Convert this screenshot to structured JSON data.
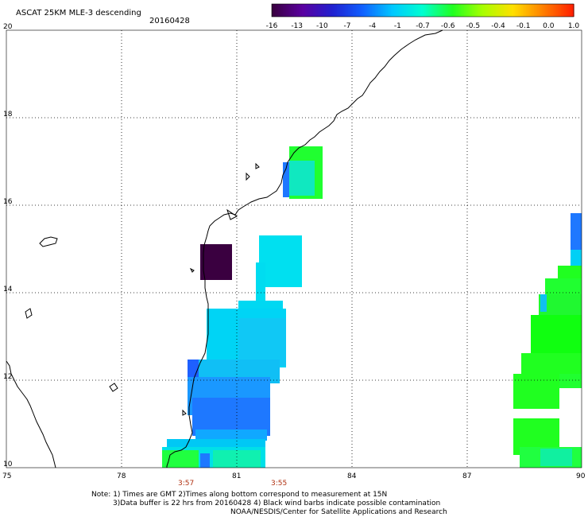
{
  "header": {
    "title": "ASCAT 25KM MLE-3 descending",
    "date": "20160428"
  },
  "colorbar": {
    "stops": [
      "#3a0040",
      "#5a00a0",
      "#2020d0",
      "#1060ff",
      "#00c8ff",
      "#00ffd0",
      "#20ff20",
      "#a8ff00",
      "#ffe000",
      "#ff8000",
      "#ff2000"
    ],
    "labels": [
      "-16",
      "-13",
      "-10",
      "-7",
      "-4",
      "-1",
      "-0.7",
      "-0.6",
      "-0.5",
      "-0.4",
      "-0.1",
      "0.0",
      "1.0"
    ]
  },
  "axes": {
    "x_ticks": [
      "75",
      "78",
      "81",
      "84",
      "87",
      "90"
    ],
    "y_ticks": [
      "20",
      "18",
      "16",
      "14",
      "12",
      "10"
    ]
  },
  "pass_times": [
    "3:57",
    "3:55"
  ],
  "notes": {
    "line1": "Note: 1) Times are GMT 2)Times along bottom correspond to measurement at 15N",
    "line2": "3)Data buffer is 22 hrs from 20160428 4) Black wind barbs indicate possible contamination",
    "line3": "NOAA/NESDIS/Center for Satellite Applications and Research"
  },
  "colors": {
    "coast": "#000000",
    "grid": "#000000",
    "mle_cyan": "#00e0f0",
    "mle_blue": "#1e78ff",
    "mle_green": "#20ff20",
    "mle_dark": "#3a0040",
    "time_red": "#b03010"
  }
}
